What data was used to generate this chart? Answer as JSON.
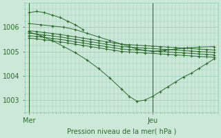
{
  "xlabel": "Pression niveau de la mer( hPa )",
  "background_color": "#cce8d8",
  "grid_color": "#99ccbb",
  "line_color": "#2d6a2d",
  "text_color": "#2d6a2d",
  "ylim": [
    1002.5,
    1007.0
  ],
  "xlim": [
    0,
    50
  ],
  "x_ticks": [
    1,
    33
  ],
  "x_tick_labels": [
    "Mer",
    "Jeu"
  ],
  "y_ticks": [
    1003,
    1004,
    1005,
    1006
  ],
  "lines": [
    {
      "x": [
        1,
        3,
        5,
        7,
        9,
        11,
        13,
        15,
        17,
        19,
        21,
        23,
        25,
        27,
        29,
        31,
        33,
        35,
        37,
        39,
        41,
        43,
        45,
        47,
        49
      ],
      "y": [
        1005.85,
        1005.82,
        1005.78,
        1005.74,
        1005.7,
        1005.65,
        1005.6,
        1005.55,
        1005.5,
        1005.45,
        1005.4,
        1005.35,
        1005.3,
        1005.28,
        1005.26,
        1005.24,
        1005.22,
        1005.2,
        1005.18,
        1005.16,
        1005.14,
        1005.12,
        1005.1,
        1005.08,
        1005.06
      ]
    },
    {
      "x": [
        1,
        3,
        5,
        7,
        9,
        11,
        13,
        15,
        17,
        19,
        21,
        23,
        25,
        27,
        29,
        31,
        33,
        35,
        37,
        39,
        41,
        43,
        45,
        47,
        49
      ],
      "y": [
        1005.75,
        1005.72,
        1005.68,
        1005.64,
        1005.6,
        1005.55,
        1005.5,
        1005.45,
        1005.4,
        1005.35,
        1005.3,
        1005.25,
        1005.2,
        1005.18,
        1005.16,
        1005.14,
        1005.12,
        1005.1,
        1005.08,
        1005.06,
        1005.04,
        1005.02,
        1005.0,
        1004.98,
        1004.96
      ]
    },
    {
      "x": [
        1,
        3,
        5,
        7,
        9,
        11,
        13,
        15,
        17,
        19,
        21,
        23,
        25,
        27,
        29,
        31,
        33,
        35,
        37,
        39,
        41,
        43,
        45,
        47,
        49
      ],
      "y": [
        1005.65,
        1005.62,
        1005.58,
        1005.54,
        1005.5,
        1005.45,
        1005.4,
        1005.35,
        1005.3,
        1005.25,
        1005.2,
        1005.15,
        1005.1,
        1005.08,
        1005.06,
        1005.04,
        1005.02,
        1005.0,
        1004.98,
        1004.96,
        1004.94,
        1004.92,
        1004.9,
        1004.88,
        1004.86
      ]
    },
    {
      "x": [
        1,
        3,
        5,
        7,
        9,
        11,
        13,
        15,
        17,
        19,
        21,
        23,
        25,
        27,
        29,
        31,
        33,
        35,
        37,
        39,
        41,
        43,
        45,
        47,
        49
      ],
      "y": [
        1005.55,
        1005.52,
        1005.48,
        1005.44,
        1005.4,
        1005.35,
        1005.3,
        1005.25,
        1005.2,
        1005.15,
        1005.1,
        1005.05,
        1005.0,
        1004.98,
        1004.96,
        1004.94,
        1004.92,
        1004.9,
        1004.88,
        1004.86,
        1004.84,
        1004.82,
        1004.8,
        1004.78,
        1004.76
      ]
    },
    {
      "x": [
        1,
        4,
        7,
        10,
        13,
        16,
        19,
        22,
        25,
        27,
        29,
        31,
        33,
        36,
        39,
        42,
        45,
        49
      ],
      "y": [
        1006.15,
        1006.1,
        1006.05,
        1006.0,
        1005.9,
        1005.75,
        1005.6,
        1005.45,
        1005.3,
        1005.2,
        1005.1,
        1005.05,
        1005.0,
        1005.05,
        1005.1,
        1005.15,
        1005.18,
        1005.2
      ]
    },
    {
      "x": [
        1,
        4,
        7,
        10,
        13,
        16,
        19,
        22,
        25,
        27,
        29,
        31,
        33,
        35,
        37,
        39,
        41,
        43,
        45,
        47,
        49
      ],
      "y": [
        1005.8,
        1005.65,
        1005.45,
        1005.2,
        1004.95,
        1004.65,
        1004.3,
        1003.9,
        1003.45,
        1003.15,
        1002.95,
        1003.0,
        1003.15,
        1003.35,
        1003.55,
        1003.75,
        1003.95,
        1004.1,
        1004.3,
        1004.5,
        1004.7
      ]
    },
    {
      "x": [
        1,
        3,
        5,
        7,
        9,
        11,
        13,
        15
      ],
      "y": [
        1006.6,
        1006.65,
        1006.6,
        1006.5,
        1006.4,
        1006.25,
        1006.1,
        1005.9
      ]
    }
  ]
}
